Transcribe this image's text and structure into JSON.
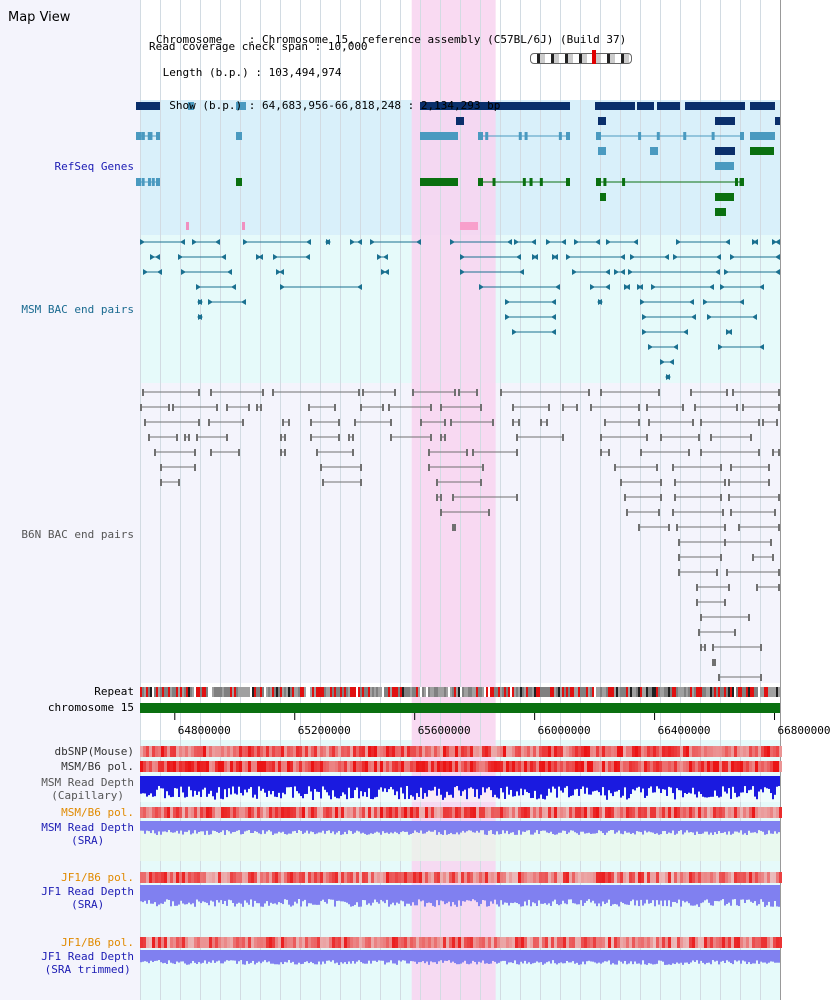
{
  "app": {
    "title": "Map View"
  },
  "header": {
    "chromosome_label": "Chromosome",
    "chromosome_value": ": Chromosome 15, reference assembly (C57BL/6J) (Build 37)",
    "length_label": "Length (b.p.)",
    "length_value": ": 103,494,974",
    "show_label": "Show (b.p.)",
    "show_value": ": 64,683,956-66,818,248 : 2,134,293 bp",
    "coverage_label": "Read coverage check span",
    "coverage_value": ": 10,000"
  },
  "tracks": {
    "refseq": "RefSeq Genes",
    "msm_bac": "MSM BAC end pairs",
    "b6n_bac": "B6N BAC end pairs",
    "repeat": "Repeat",
    "chromosome": "chromosome 15",
    "dbsnp": "dbSNP(Mouse)",
    "msm_b6_pol_1": "MSM/B6 pol.",
    "msm_read_depth_cap_1": "MSM Read Depth",
    "msm_read_depth_cap_2": "(Capillary)",
    "msm_b6_pol_2": "MSM/B6 pol.",
    "msm_read_depth_sra_1": "MSM Read Depth",
    "msm_read_depth_sra_2": "(SRA)",
    "jf1_b6_pol_1": "JF1/B6 pol.",
    "jf1_read_depth_sra_1": "JF1 Read Depth",
    "jf1_read_depth_sra_2": "(SRA)",
    "jf1_b6_pol_2": "JF1/B6 pol.",
    "jf1_read_depth_trim_1": "JF1 Read Depth",
    "jf1_read_depth_trim_2": "(SRA trimmed)"
  },
  "axis": {
    "ticks": [
      "64800000",
      "65200000",
      "65600000",
      "66000000",
      "66400000",
      "66800000"
    ],
    "tick_values": [
      64800000,
      65200000,
      65600000,
      66000000,
      66400000,
      66800000
    ],
    "start": 64683956,
    "end": 66818248
  },
  "highlight": {
    "start": 65590000,
    "end": 65870000,
    "color": "#f8d4f0"
  },
  "colors": {
    "refseq_bg": "#d9f0fa",
    "msm_bg": "#e6fafa",
    "b6n_bg": "#f4f4fc",
    "lower_bg": "#e6fafa",
    "refseq_dark": "#0a2f6b",
    "refseq_mid": "#4a9ac0",
    "refseq_green": "#0a7010",
    "msm_pair": "#1a7090",
    "b6n_pair": "#707070",
    "chromosome_bar": "#0a7010",
    "depth_capillary": "#1a1ae0",
    "depth_sra": "#8080f0",
    "snp_red": "#e81818"
  }
}
